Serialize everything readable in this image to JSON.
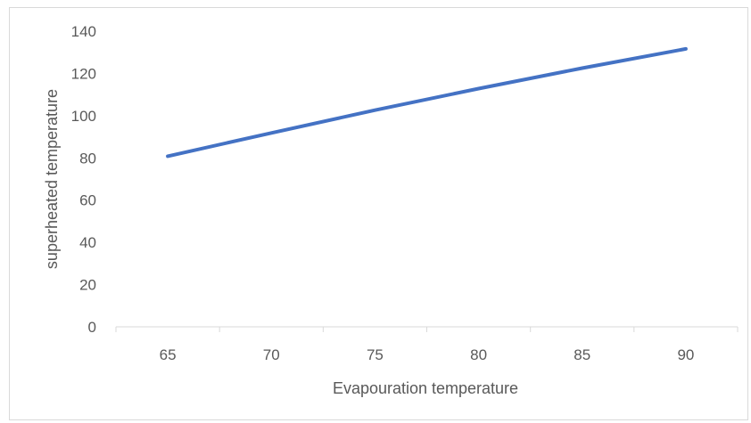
{
  "chart_data": {
    "type": "line",
    "title": "",
    "xlabel": "Evapouration temperature",
    "ylabel": "superheated temperature",
    "categories": [
      "65",
      "70",
      "75",
      "80",
      "85",
      "90"
    ],
    "series": [
      {
        "values": [
          80.8,
          91.8,
          102.6,
          112.8,
          122.5,
          131.6
        ]
      }
    ],
    "ylim": [
      0,
      140
    ],
    "yticks": [
      "0",
      "20",
      "40",
      "60",
      "80",
      "100",
      "120",
      "140"
    ],
    "grid": false,
    "legend": "none",
    "line_color": "#4472c4",
    "axis_color": "#d9d9d9",
    "text_color": "#595959"
  }
}
